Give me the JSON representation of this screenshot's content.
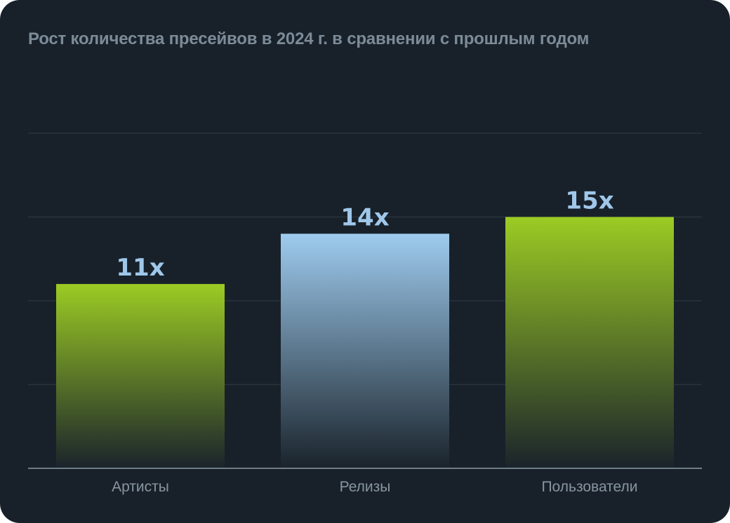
{
  "chart_data": {
    "type": "bar",
    "title": "Рост количества пресейвов в 2024 г. в сравнении с прошлым годом",
    "categories": [
      "Артисты",
      "Релизы",
      "Пользователи"
    ],
    "values": [
      11,
      14,
      15
    ],
    "value_labels": [
      "11x",
      "14x",
      "15x"
    ],
    "ylim": [
      0,
      20
    ],
    "grid": true,
    "colors": {
      "background": "#18212a",
      "title": "#7c8b97",
      "value_label": "#9fc7ea",
      "category_label": "#8895a0",
      "grid": "#27333c",
      "axis": "#6f7c86",
      "bar_green_top": "#9ccb24",
      "bar_blue_top": "#9ecbee",
      "bar_bottom": "#1a232b"
    },
    "bar_styles": [
      "green",
      "blue",
      "green"
    ]
  }
}
